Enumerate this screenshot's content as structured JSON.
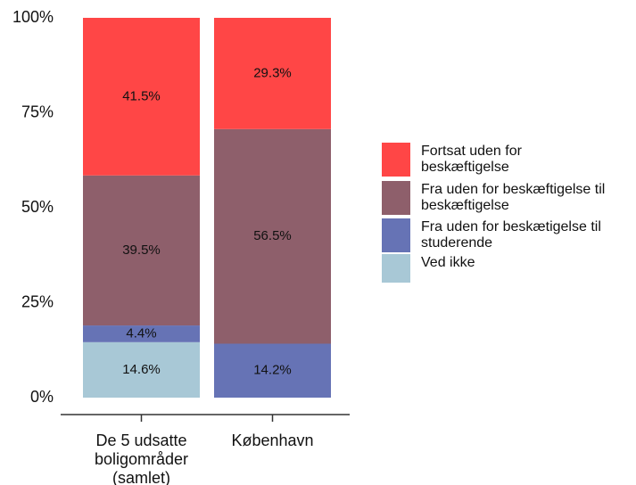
{
  "chart_data": {
    "type": "stacked_bar",
    "categories": [
      "De 5 udsatte boligområder (samlet)",
      "København"
    ],
    "series": [
      {
        "name": "Ved ikke",
        "color": "#a8c8d6",
        "values": [
          14.6,
          null
        ],
        "value_labels": [
          "14.6%",
          null
        ]
      },
      {
        "name": "Fra uden for beskætigelse til studerende",
        "color": "#6673b5",
        "values": [
          4.4,
          14.2
        ],
        "value_labels": [
          "4.4%",
          "14.2%"
        ]
      },
      {
        "name": "Fra uden for beskæftigelse til beskæftigelse",
        "color": "#8e5f6b",
        "values": [
          39.5,
          56.5
        ],
        "value_labels": [
          "39.5%",
          "56.5%"
        ]
      },
      {
        "name": "Fortsat uden for beskæftigelse",
        "color": "#ff4646",
        "values": [
          41.5,
          29.3
        ],
        "value_labels": [
          "41.5%",
          "29.3%"
        ]
      }
    ],
    "ylim": [
      0,
      100
    ],
    "yticks": [
      {
        "value": 0,
        "label": "0%"
      },
      {
        "value": 25,
        "label": "25%"
      },
      {
        "value": 50,
        "label": "50%"
      },
      {
        "value": 75,
        "label": "75%"
      },
      {
        "value": 100,
        "label": "100%"
      }
    ],
    "legend": "right"
  }
}
